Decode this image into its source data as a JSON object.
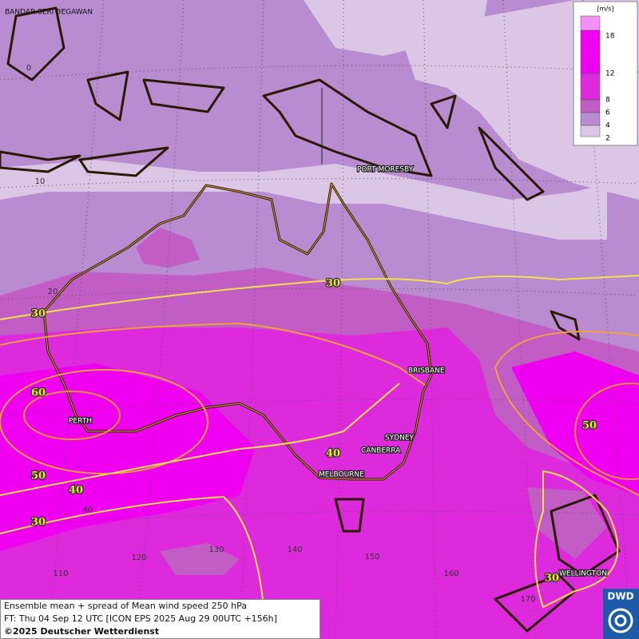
{
  "map": {
    "places": [
      "BANDAR SERI BEGAWAN",
      "PORT MORESBY",
      "BRISBANE",
      "PERTH",
      "SYDNEY",
      "CANBERRA",
      "MELBOURNE",
      "WELLINGTON"
    ],
    "latitude_labels": [
      0,
      10,
      20,
      40
    ],
    "longitude_labels": [
      110,
      120,
      130,
      140,
      150,
      160,
      170
    ],
    "contour_labels": [
      30,
      30,
      60,
      50,
      40,
      40,
      30,
      50,
      30
    ]
  },
  "legend": {
    "unit": "[m/s]",
    "ticks": [
      2,
      4,
      6,
      8,
      12,
      18
    ]
  },
  "footer": {
    "line1": "Ensemble mean + spread of Mean wind speed 250 hPa",
    "line2": "FT: Thu 04 Sep 12 UTC [ICON EPS 2025 Aug 29 00UTC +156h]",
    "line3": "©2025 Deutscher Wetterdienst"
  },
  "logo": "DWD"
}
